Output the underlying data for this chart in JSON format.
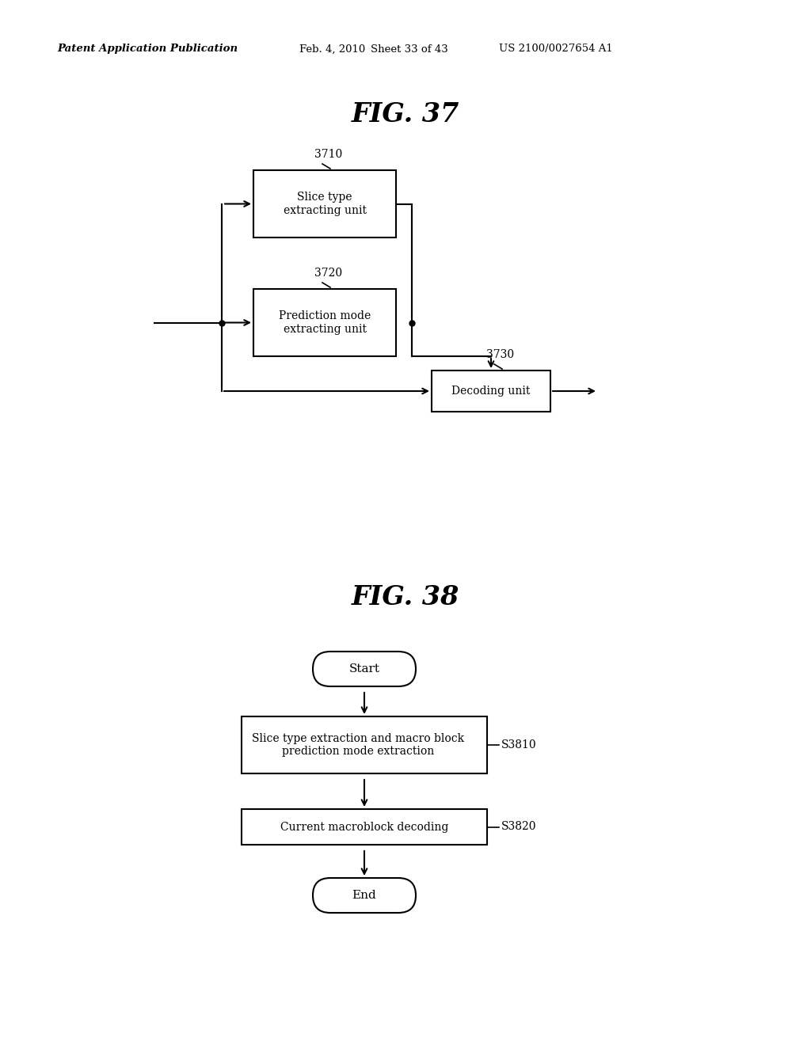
{
  "bg_color": "#ffffff",
  "header_text": "Patent Application Publication",
  "header_date": "Feb. 4, 2010   Sheet 33 of 43",
  "header_patent": "US 2100/0027654 A1",
  "fig37_title": "FIG. 37",
  "fig38_title": "FIG. 38",
  "fig37_label_3710": "3710",
  "fig37_label_3720": "3720",
  "fig37_label_3730": "3730",
  "fig37_box1_text": "Slice type\nextracting unit",
  "fig37_box2_text": "Prediction mode\nextracting unit",
  "fig37_box3_text": "Decoding unit",
  "fig38_start_text": "Start",
  "fig38_end_text": "End",
  "fig38_box1_text": "Slice type extraction and macro block\nprediction mode extraction",
  "fig38_box2_text": "Current macroblock decoding",
  "fig38_label_S3810": "S3810",
  "fig38_label_S3820": "S3820"
}
